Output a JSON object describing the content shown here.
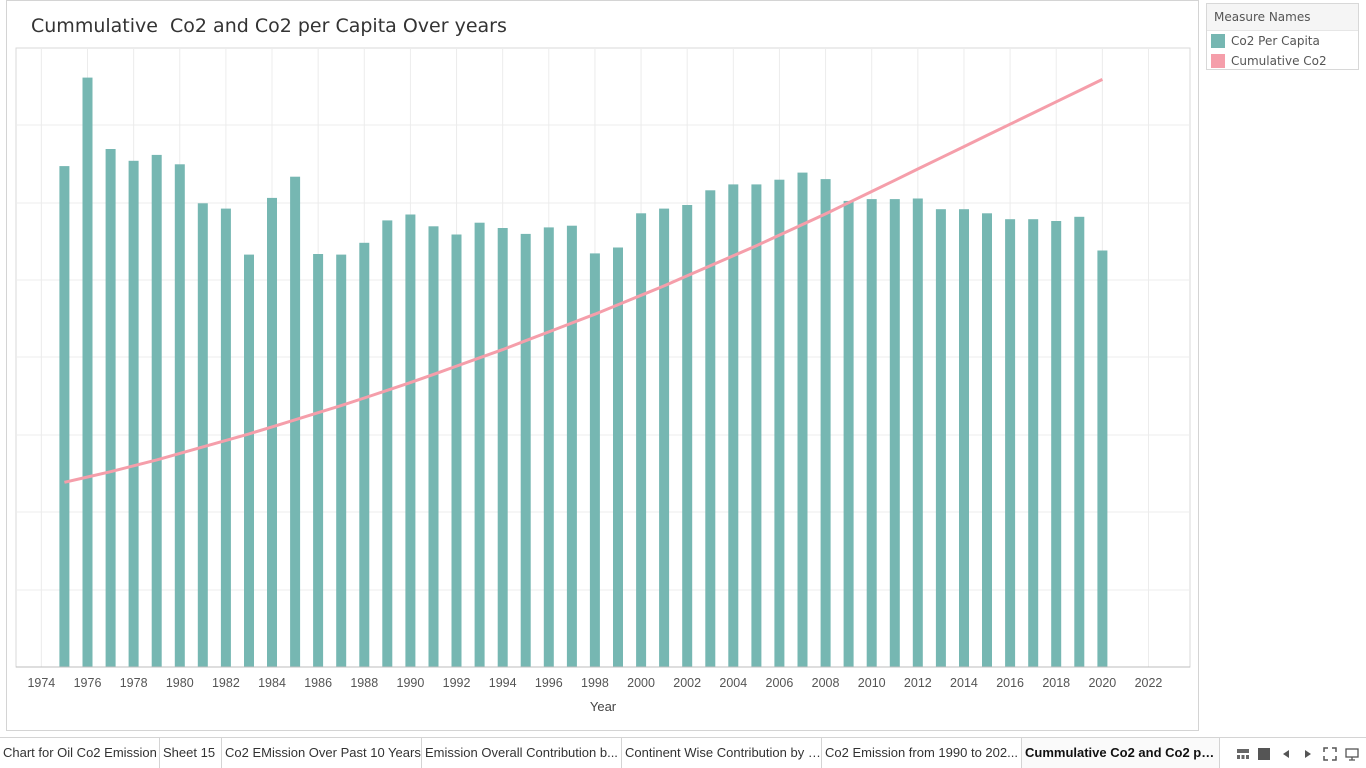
{
  "colors": {
    "bar": "#76b7b2",
    "line": "#f59eaa",
    "grid": "#ececec"
  },
  "chart_data": {
    "type": "bar",
    "title": "Cummulative  Co2 and Co2 per Capita Over years",
    "xlabel": "Year",
    "ylabel": "",
    "x_ticks": [
      1974,
      1976,
      1978,
      1980,
      1982,
      1984,
      1986,
      1988,
      1990,
      1992,
      1994,
      1996,
      1998,
      2000,
      2002,
      2004,
      2006,
      2008,
      2010,
      2012,
      2014,
      2016,
      2018,
      2020,
      2022
    ],
    "xlim": [
      1972.9,
      2023.8
    ],
    "y_axis_labels_visible": false,
    "grid": true,
    "legend": {
      "title": "Measure Names",
      "placement": "right"
    },
    "categories": [
      1975,
      1976,
      1977,
      1978,
      1979,
      1980,
      1981,
      1982,
      1983,
      1984,
      1985,
      1986,
      1987,
      1988,
      1989,
      1990,
      1991,
      1992,
      1993,
      1994,
      1995,
      1996,
      1997,
      1998,
      1999,
      2000,
      2001,
      2002,
      2003,
      2004,
      2005,
      2006,
      2007,
      2008,
      2009,
      2010,
      2011,
      2012,
      2013,
      2014,
      2015,
      2016,
      2017,
      2018,
      2019,
      2020
    ],
    "series": [
      {
        "name": "Co2 Per Capita",
        "type": "bar",
        "values": [
          0.849,
          0.999,
          0.878,
          0.858,
          0.868,
          0.852,
          0.786,
          0.777,
          0.699,
          0.795,
          0.831,
          0.7,
          0.699,
          0.719,
          0.757,
          0.767,
          0.747,
          0.733,
          0.753,
          0.744,
          0.734,
          0.745,
          0.748,
          0.701,
          0.711,
          0.769,
          0.777,
          0.783,
          0.808,
          0.818,
          0.818,
          0.826,
          0.838,
          0.827,
          0.79,
          0.793,
          0.793,
          0.794,
          0.776,
          0.776,
          0.769,
          0.759,
          0.759,
          0.756,
          0.763,
          0.706
        ]
      },
      {
        "name": "Cumulative Co2",
        "type": "line",
        "values": [
          0.313,
          0.322,
          0.331,
          0.341,
          0.351,
          0.362,
          0.373,
          0.384,
          0.395,
          0.407,
          0.419,
          0.431,
          0.443,
          0.456,
          0.469,
          0.482,
          0.496,
          0.51,
          0.524,
          0.538,
          0.553,
          0.568,
          0.583,
          0.598,
          0.614,
          0.63,
          0.646,
          0.663,
          0.68,
          0.697,
          0.714,
          0.732,
          0.75,
          0.768,
          0.787,
          0.806,
          0.825,
          0.844,
          0.863,
          0.882,
          0.901,
          0.92,
          0.939,
          0.958,
          0.977,
          0.996
        ]
      }
    ]
  },
  "tabs": [
    {
      "label": "Chart for Oil Co2 Emission",
      "active": false
    },
    {
      "label": "Sheet 15",
      "active": false
    },
    {
      "label": "Co2 EMission Over Past 10 Years",
      "active": false
    },
    {
      "label": "Emission Overall Contribution b...",
      "active": false
    },
    {
      "label": "Continent Wise Contribution by I...",
      "active": false
    },
    {
      "label": "Co2 Emission from 1990 to 202...",
      "active": false
    },
    {
      "label": "Cummulative Co2 and Co2 per ...",
      "active": true
    }
  ],
  "tab_controls": {
    "show_filmstrip_icon": "filmstrip-icon",
    "show_tabs_icon": "tabs-icon",
    "prev_icon": "triangle-left-icon",
    "next_icon": "triangle-right-icon",
    "fullscreen_icon": "fullscreen-icon",
    "presentation_icon": "presentation-icon"
  }
}
